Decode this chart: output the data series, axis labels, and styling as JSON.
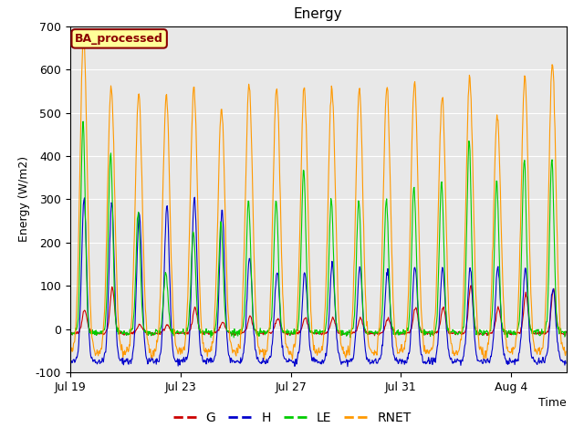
{
  "title": "Energy",
  "xlabel": "Time",
  "ylabel": "Energy (W/m2)",
  "ylim": [
    -100,
    700
  ],
  "yticks": [
    -100,
    0,
    100,
    200,
    300,
    400,
    500,
    600,
    700
  ],
  "xtick_labels": [
    "Jul 19",
    "Jul 23",
    "Jul 27",
    "Jul 31",
    "Aug 4"
  ],
  "legend_labels": [
    "G",
    "H",
    "LE",
    "RNET"
  ],
  "line_colors": [
    "#cc0000",
    "#0000cc",
    "#00cc00",
    "#ff9900"
  ],
  "background_color": "#e8e8e8",
  "annotation_text": "BA_processed",
  "annotation_color": "#8b0000",
  "annotation_bg": "#ffff99",
  "title_fontsize": 11,
  "label_fontsize": 9,
  "n_days": 18,
  "timesteps_per_day": 48
}
